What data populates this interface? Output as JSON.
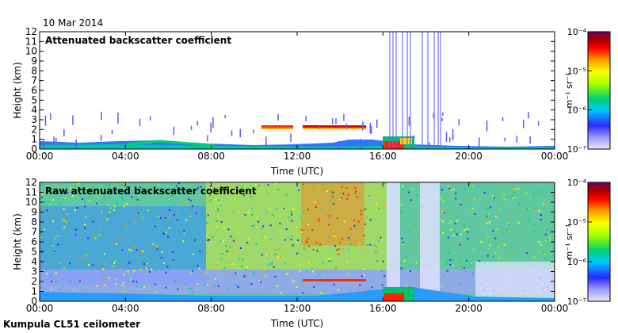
{
  "date_label": "10 Mar 2014",
  "footer_label": "Kumpula CL51 ceilometer",
  "colorbar": {
    "unit_label": "m⁻¹ sr⁻¹",
    "ticks": [
      {
        "label": "10⁻⁴",
        "exp": -4
      },
      {
        "label": "10⁻⁵",
        "exp": -5
      },
      {
        "label": "10⁻⁶",
        "exp": -6
      },
      {
        "label": "10⁻⁷",
        "exp": -7
      }
    ],
    "scale": "log",
    "range": [
      -7,
      -4
    ],
    "colors": [
      "#e6e6ff",
      "#9a9aff",
      "#2a2aff",
      "#00c8ff",
      "#00d26e",
      "#a0ff00",
      "#ffff00",
      "#ff9a00",
      "#ff0000",
      "#a00000",
      "#6e0064"
    ]
  },
  "chart_data": [
    {
      "type": "heatmap",
      "title": "Attenuated backscatter coefficient",
      "xlabel": "Time (UTC)",
      "ylabel": "Height (km)",
      "xlim": [
        0,
        24
      ],
      "ylim": [
        0,
        12
      ],
      "x_ticks": [
        "00:00",
        "04:00",
        "08:00",
        "12:00",
        "16:00",
        "20:00",
        "00:00"
      ],
      "y_ticks": [
        "0",
        "1",
        "2",
        "3",
        "4",
        "5",
        "6",
        "7",
        "8",
        "9",
        "10",
        "11",
        "12"
      ],
      "features": [
        {
          "name": "boundary layer",
          "t_start": 0,
          "t_end": 24,
          "top_km": 0.7
        },
        {
          "name": "cloud layer",
          "t_start": 10.3,
          "t_end": 11.6,
          "height_km": 2.2
        },
        {
          "name": "cloud layer",
          "t_start": 12.1,
          "t_end": 15,
          "height_km": 2.1
        },
        {
          "name": "precipitation",
          "t_start": 16.5,
          "t_end": 18.8,
          "top_km": 12
        }
      ]
    },
    {
      "type": "heatmap",
      "title": "Raw attenuated backscatter coefficient",
      "xlabel": "Time (UTC)",
      "ylabel": "Height (km)",
      "xlim": [
        0,
        24
      ],
      "ylim": [
        0,
        12
      ],
      "x_ticks": [
        "00:00",
        "04:00",
        "08:00",
        "12:00",
        "16:00",
        "20:00",
        "00:00"
      ],
      "y_ticks": [
        "0",
        "1",
        "2",
        "3",
        "4",
        "5",
        "6",
        "7",
        "8",
        "9",
        "10",
        "11",
        "12"
      ],
      "features": [
        {
          "name": "background noise",
          "t_start": 0,
          "t_end": 24,
          "top_km": 12
        },
        {
          "name": "cloud layer",
          "t_start": 12.1,
          "t_end": 15,
          "height_km": 2.1
        },
        {
          "name": "precipitation",
          "t_start": 16.5,
          "t_end": 18.8,
          "top_km": 12
        }
      ]
    }
  ]
}
